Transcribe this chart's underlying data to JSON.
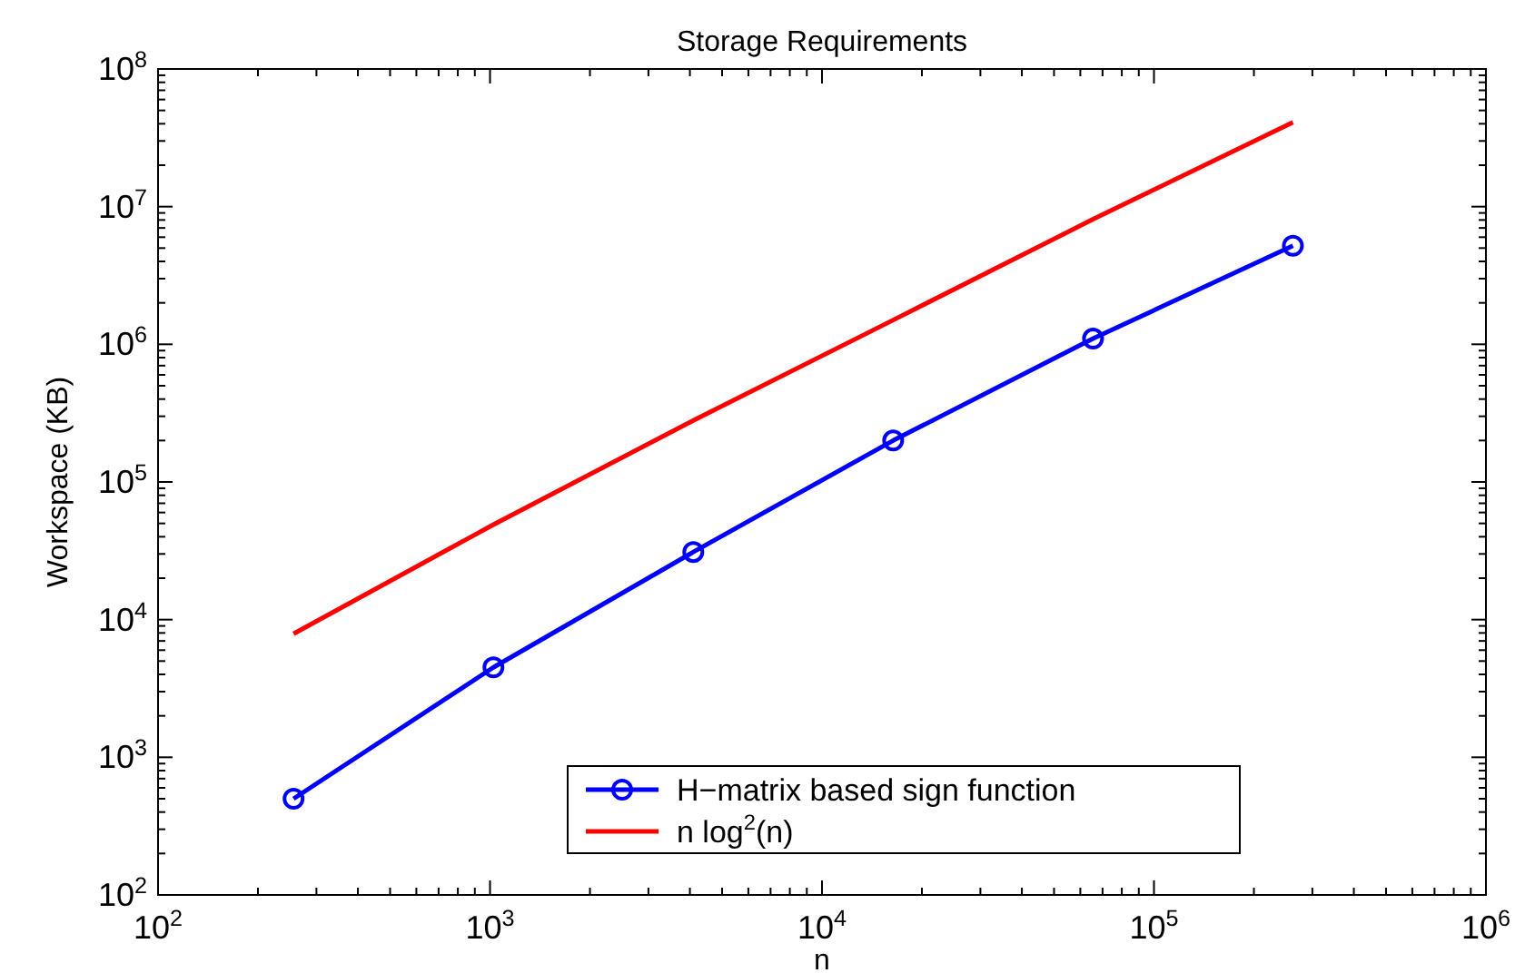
{
  "chart_data": {
    "type": "line",
    "title": "Storage Requirements",
    "xlabel": "n",
    "ylabel": "Workspace (KB)",
    "log": "xy",
    "xlim": [
      100,
      1000000
    ],
    "xticks": [
      {
        "value": 100,
        "label": "10$^{2}$"
      },
      {
        "value": 1000,
        "label": "10$^{3}$"
      },
      {
        "value": 10000,
        "label": "10$^{4}$"
      },
      {
        "value": 100000,
        "label": "10$^{5}$"
      },
      {
        "value": 1000000,
        "label": "10$^{6}$"
      }
    ],
    "ylim": [
      100,
      100000000
    ],
    "yticks": [
      {
        "value": 100,
        "label": "10$^{2}$"
      },
      {
        "value": 1000,
        "label": "10$^{3}$"
      },
      {
        "value": 10000,
        "label": "10$^{4}$"
      },
      {
        "value": 100000,
        "label": "10$^{5}$"
      },
      {
        "value": 1000000,
        "label": "10$^{6}$"
      },
      {
        "value": 10000000,
        "label": "10$^{7}$"
      },
      {
        "value": 100000000,
        "label": "10$^{8}$"
      }
    ],
    "x": [
      256,
      1024,
      4096,
      16384,
      65536,
      262144
    ],
    "series": [
      {
        "name": "H−matrix based sign function",
        "color": "#0000ff",
        "marker": "circle",
        "values": [
          500,
          4500,
          31000,
          200000,
          1100000,
          5200000
        ]
      },
      {
        "name": "n log$^{2}$(n)",
        "color": "#ff0000",
        "marker": "none",
        "values": [
          7900,
          49000,
          280000,
          1500000,
          8100000,
          41000000
        ]
      }
    ],
    "legend": "bottom",
    "grid": false
  }
}
